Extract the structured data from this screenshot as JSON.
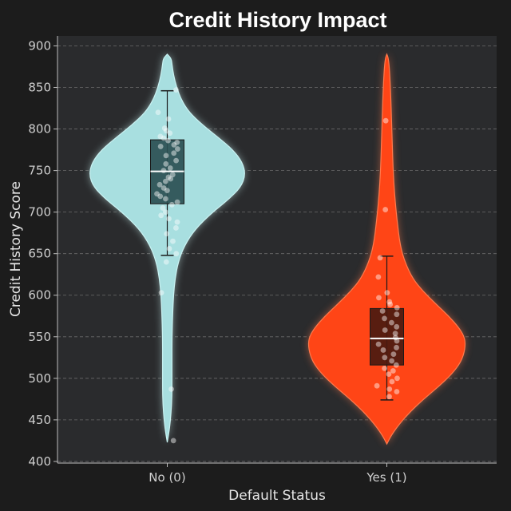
{
  "chart_data": {
    "type": "violin",
    "title": "Credit History Impact",
    "xlabel": "Default Status",
    "ylabel": "Credit History Score",
    "ylim": [
      398,
      912
    ],
    "yticks": [
      400,
      450,
      500,
      550,
      600,
      650,
      700,
      750,
      800,
      850,
      900
    ],
    "grid": true,
    "categories": [
      "No (0)",
      "Yes (1)"
    ],
    "background_color": "#2a2b2d",
    "series": [
      {
        "category": "No (0)",
        "fill_color": "#a8dfe0",
        "glow_color": "#c9f2f2",
        "box_color": "#2b4f52",
        "box": {
          "whisker_low": 648,
          "q1": 710,
          "median": 749,
          "q3": 787,
          "whisker_high": 846
        },
        "range": [
          423,
          890
        ],
        "density": [
          [
            423,
            0.0
          ],
          [
            440,
            0.03
          ],
          [
            460,
            0.05
          ],
          [
            480,
            0.06
          ],
          [
            500,
            0.06
          ],
          [
            520,
            0.06
          ],
          [
            550,
            0.06
          ],
          [
            580,
            0.07
          ],
          [
            600,
            0.08
          ],
          [
            620,
            0.1
          ],
          [
            640,
            0.14
          ],
          [
            660,
            0.22
          ],
          [
            680,
            0.36
          ],
          [
            700,
            0.58
          ],
          [
            715,
            0.78
          ],
          [
            730,
            0.94
          ],
          [
            745,
            1.0
          ],
          [
            760,
            0.96
          ],
          [
            775,
            0.84
          ],
          [
            790,
            0.65
          ],
          [
            805,
            0.45
          ],
          [
            820,
            0.28
          ],
          [
            835,
            0.18
          ],
          [
            850,
            0.12
          ],
          [
            865,
            0.08
          ],
          [
            878,
            0.06
          ],
          [
            885,
            0.05
          ],
          [
            890,
            0.0
          ]
        ],
        "points": [
          847,
          820,
          812,
          801,
          798,
          795,
          791,
          789,
          786,
          784,
          781,
          779,
          776,
          771,
          768,
          762,
          758,
          753,
          750,
          745,
          742,
          740,
          737,
          733,
          729,
          726,
          722,
          719,
          716,
          712,
          709,
          705,
          700,
          696,
          692,
          688,
          681,
          674,
          665,
          656,
          650,
          640,
          603,
          487,
          425
        ]
      },
      {
        "category": "Yes (1)",
        "fill_color": "#ff4516",
        "glow_color": "#ff7a4d",
        "box_color": "#4a1a10",
        "box": {
          "whisker_low": 474,
          "q1": 516,
          "median": 548,
          "q3": 584,
          "whisker_high": 647
        },
        "range": [
          421,
          890
        ],
        "density": [
          [
            421,
            0.0
          ],
          [
            432,
            0.06
          ],
          [
            445,
            0.16
          ],
          [
            460,
            0.3
          ],
          [
            475,
            0.47
          ],
          [
            490,
            0.66
          ],
          [
            505,
            0.83
          ],
          [
            520,
            0.95
          ],
          [
            535,
            1.0
          ],
          [
            548,
            1.0
          ],
          [
            560,
            0.93
          ],
          [
            575,
            0.79
          ],
          [
            590,
            0.62
          ],
          [
            605,
            0.46
          ],
          [
            620,
            0.33
          ],
          [
            640,
            0.23
          ],
          [
            660,
            0.17
          ],
          [
            690,
            0.13
          ],
          [
            720,
            0.1
          ],
          [
            750,
            0.08
          ],
          [
            780,
            0.07
          ],
          [
            810,
            0.06
          ],
          [
            840,
            0.05
          ],
          [
            870,
            0.035
          ],
          [
            885,
            0.02
          ],
          [
            890,
            0.0
          ]
        ],
        "points": [
          810,
          703,
          645,
          622,
          603,
          597,
          592,
          589,
          585,
          581,
          577,
          572,
          567,
          562,
          558,
          554,
          549,
          545,
          541,
          537,
          534,
          529,
          525,
          521,
          516,
          512,
          509,
          505,
          500,
          496,
          491,
          487,
          484,
          478
        ]
      }
    ]
  }
}
